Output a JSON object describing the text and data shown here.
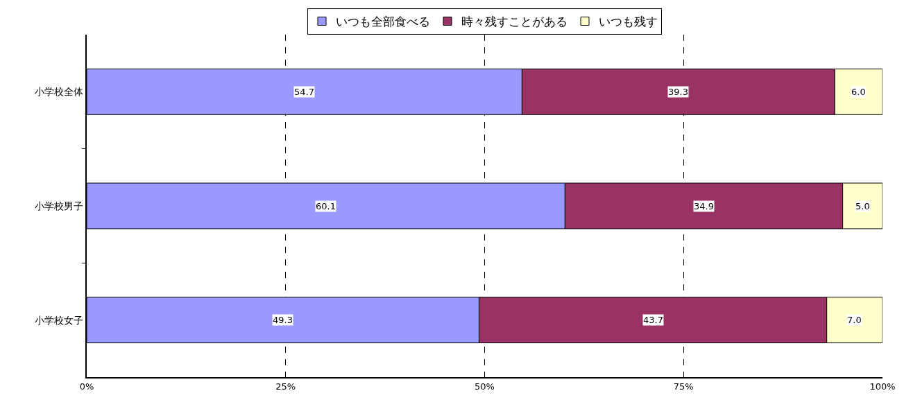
{
  "chart_data": {
    "type": "bar",
    "orientation": "horizontal",
    "stacked": true,
    "categories": [
      "小学校全体",
      "小学校男子",
      "小学校女子"
    ],
    "series": [
      {
        "name": "いつも全部食べる",
        "color": "#9999ff",
        "values": [
          54.7,
          60.1,
          49.3
        ],
        "value_labels": [
          "54.7",
          "60.1",
          "49.3"
        ]
      },
      {
        "name": "時々残すことがある",
        "color": "#993366",
        "values": [
          39.3,
          34.9,
          43.7
        ],
        "value_labels": [
          "39.3",
          "34.9",
          "43.7"
        ]
      },
      {
        "name": "いつも残す",
        "color": "#ffffcc",
        "values": [
          6.0,
          5.0,
          7.0
        ],
        "value_labels": [
          "6.0",
          "5.0",
          "7.0"
        ]
      }
    ],
    "xlim": [
      0,
      100
    ],
    "xticks": [
      {
        "value": 0,
        "label": "0%"
      },
      {
        "value": 25,
        "label": "25%"
      },
      {
        "value": 50,
        "label": "50%"
      },
      {
        "value": 75,
        "label": "75%"
      },
      {
        "value": 100,
        "label": "100%"
      }
    ],
    "grid": "x",
    "legend": "top"
  }
}
